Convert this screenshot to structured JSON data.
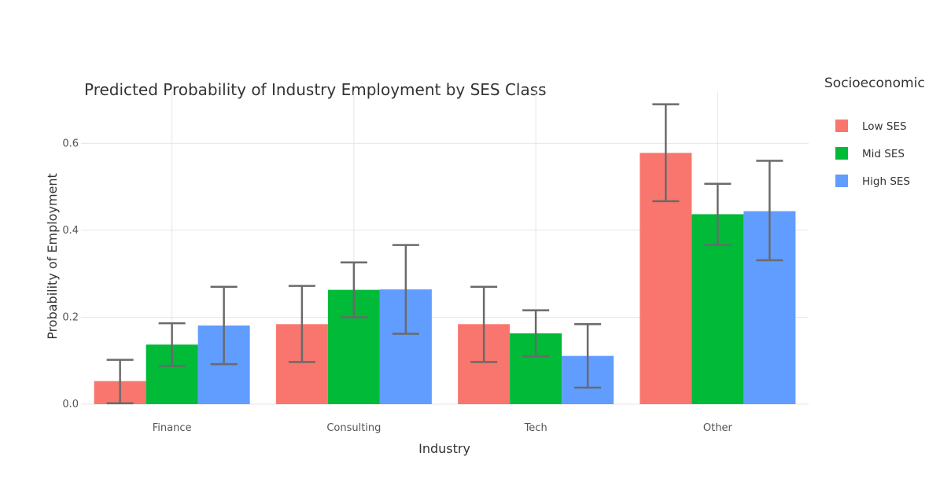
{
  "chart_data": {
    "type": "bar",
    "title": "Predicted Probability of Industry Employment by SES Class",
    "xlabel": "Industry",
    "ylabel": "Probability of Employment",
    "categories": [
      "Finance",
      "Consulting",
      "Tech",
      "Other"
    ],
    "ylim": [
      0,
      0.72
    ],
    "yticks": [
      "0.0",
      "0.2",
      "0.4",
      "0.6"
    ],
    "ytick_values": [
      0,
      0.2,
      0.4,
      0.6
    ],
    "grid": true,
    "legend": {
      "title": "Socioeconomic",
      "placement": "right"
    },
    "series": [
      {
        "name": "Low SES",
        "color": "#F8766D",
        "values": [
          0.053,
          0.184,
          0.184,
          0.578
        ],
        "error_low": [
          0.002,
          0.097,
          0.097,
          0.467
        ],
        "error_high": [
          0.102,
          0.272,
          0.27,
          0.69
        ]
      },
      {
        "name": "Mid SES",
        "color": "#00BA38",
        "values": [
          0.137,
          0.263,
          0.163,
          0.437
        ],
        "error_low": [
          0.088,
          0.2,
          0.11,
          0.366
        ],
        "error_high": [
          0.186,
          0.326,
          0.216,
          0.507
        ]
      },
      {
        "name": "High SES",
        "color": "#619CFF",
        "values": [
          0.181,
          0.264,
          0.111,
          0.444
        ],
        "error_low": [
          0.092,
          0.162,
          0.038,
          0.331
        ],
        "error_high": [
          0.27,
          0.366,
          0.184,
          0.56
        ]
      }
    ]
  }
}
